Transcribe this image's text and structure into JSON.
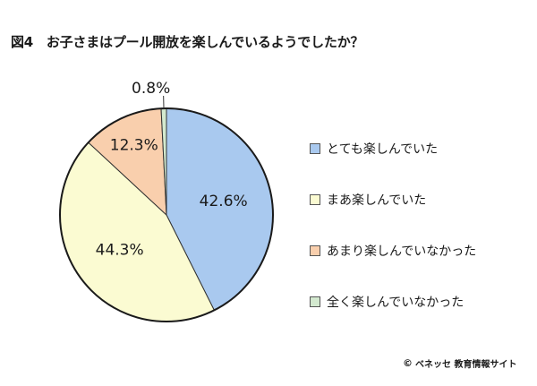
{
  "title": "図4　お子さまはプール開放を楽しんでいるようでしたか？",
  "chart_data": {
    "type": "pie",
    "start": "top",
    "direction": "clockwise",
    "categories": [
      "とても楽しんでいた",
      "まあ楽しんでいた",
      "あまり楽しんでいなかった",
      "全く楽しんでいなかった"
    ],
    "values": [
      42.6,
      44.3,
      12.3,
      0.8
    ],
    "labels": [
      "42.6%",
      "44.3%",
      "12.3%",
      "0.8%"
    ],
    "colors": [
      "#a9c9ef",
      "#fbfbd2",
      "#f9cfad",
      "#d3e9cf"
    ],
    "legend_position": "right"
  },
  "footer": {
    "copyright_symbol": "©",
    "text": "ベネッセ 教育情報サイト"
  }
}
